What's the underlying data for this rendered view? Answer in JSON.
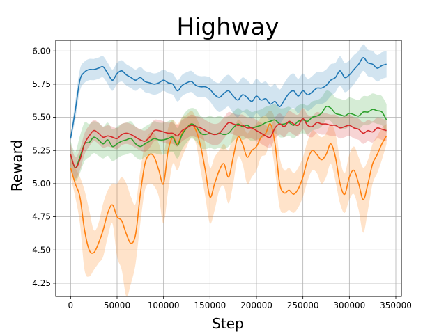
{
  "chart_data": {
    "type": "line",
    "title": "Highway",
    "xlabel": "Step",
    "ylabel": "Reward",
    "xlim": [
      -16000,
      356000
    ],
    "ylim": [
      4.15,
      6.08
    ],
    "grid": true,
    "legend": "none",
    "x_ticks": [
      0,
      50000,
      100000,
      150000,
      200000,
      250000,
      300000,
      350000
    ],
    "x_tick_labels": [
      "0",
      "50000",
      "100000",
      "150000",
      "200000",
      "250000",
      "300000",
      "350000"
    ],
    "y_ticks": [
      4.25,
      4.5,
      4.75,
      5.0,
      5.25,
      5.5,
      5.75,
      6.0
    ],
    "y_tick_labels": [
      "4.25",
      "4.50",
      "4.75",
      "5.00",
      "5.25",
      "5.50",
      "5.75",
      "6.00"
    ],
    "series": [
      {
        "color": "#ff7f0e",
        "band_opacity": 0.22,
        "x": [
          0,
          5000,
          10000,
          15000,
          20000,
          25000,
          30000,
          35000,
          40000,
          45000,
          50000,
          55000,
          60000,
          65000,
          70000,
          75000,
          80000,
          85000,
          90000,
          95000,
          100000,
          105000,
          110000,
          115000,
          120000,
          125000,
          130000,
          135000,
          140000,
          145000,
          150000,
          155000,
          160000,
          165000,
          170000,
          175000,
          180000,
          185000,
          190000,
          195000,
          200000,
          205000,
          210000,
          215000,
          220000,
          225000,
          230000,
          235000,
          240000,
          245000,
          250000,
          255000,
          260000,
          265000,
          270000,
          275000,
          280000,
          285000,
          290000,
          295000,
          300000,
          305000,
          310000,
          315000,
          320000,
          325000,
          330000,
          335000,
          340000
        ],
        "mean": [
          5.12,
          5.0,
          4.9,
          4.65,
          4.5,
          4.48,
          4.55,
          4.65,
          4.78,
          4.84,
          4.75,
          4.72,
          4.62,
          4.55,
          4.62,
          4.92,
          5.15,
          5.22,
          5.2,
          5.1,
          5.0,
          5.25,
          5.35,
          5.3,
          5.38,
          5.42,
          5.45,
          5.4,
          5.28,
          5.1,
          4.9,
          5.0,
          5.1,
          5.15,
          5.05,
          5.2,
          5.35,
          5.3,
          5.2,
          5.25,
          5.28,
          5.35,
          5.38,
          5.45,
          5.3,
          5.0,
          4.93,
          4.95,
          4.92,
          4.96,
          5.05,
          5.18,
          5.25,
          5.22,
          5.18,
          5.22,
          5.3,
          5.2,
          5.0,
          4.92,
          5.05,
          5.1,
          5.0,
          4.88,
          5.0,
          5.15,
          5.22,
          5.3,
          5.36
        ],
        "low": [
          5.05,
          4.9,
          4.7,
          4.35,
          4.3,
          4.35,
          4.4,
          4.45,
          4.6,
          4.7,
          4.45,
          4.35,
          4.15,
          4.25,
          4.4,
          4.7,
          4.95,
          5.0,
          4.98,
          4.9,
          4.7,
          4.95,
          5.15,
          5.1,
          5.2,
          5.28,
          5.35,
          5.3,
          5.1,
          4.9,
          4.7,
          4.8,
          4.95,
          4.98,
          4.85,
          5.0,
          5.2,
          5.15,
          5.0,
          5.05,
          5.1,
          5.2,
          5.22,
          5.3,
          5.1,
          4.82,
          4.78,
          4.8,
          4.78,
          4.82,
          4.9,
          5.02,
          5.1,
          5.08,
          5.0,
          5.05,
          5.15,
          5.02,
          4.85,
          4.78,
          4.88,
          4.92,
          4.8,
          4.63,
          4.8,
          5.0,
          5.08,
          5.18,
          5.3
        ],
        "high": [
          5.2,
          5.12,
          5.05,
          4.95,
          4.8,
          4.65,
          4.7,
          4.85,
          4.95,
          5.0,
          5.0,
          5.05,
          5.0,
          4.9,
          4.85,
          5.1,
          5.3,
          5.38,
          5.38,
          5.3,
          5.22,
          5.42,
          5.48,
          5.45,
          5.5,
          5.52,
          5.55,
          5.5,
          5.42,
          5.3,
          5.12,
          5.2,
          5.25,
          5.3,
          5.25,
          5.38,
          5.48,
          5.45,
          5.38,
          5.42,
          5.45,
          5.5,
          5.52,
          5.55,
          5.48,
          5.2,
          5.1,
          5.12,
          5.08,
          5.12,
          5.2,
          5.32,
          5.4,
          5.38,
          5.35,
          5.38,
          5.45,
          5.38,
          5.18,
          5.08,
          5.22,
          5.28,
          5.2,
          5.12,
          5.18,
          5.3,
          5.36,
          5.42,
          5.45
        ]
      },
      {
        "color": "#2ca02c",
        "band_opacity": 0.2,
        "x": [
          0,
          5000,
          10000,
          15000,
          20000,
          25000,
          30000,
          35000,
          40000,
          45000,
          50000,
          55000,
          60000,
          65000,
          70000,
          75000,
          80000,
          85000,
          90000,
          95000,
          100000,
          105000,
          110000,
          115000,
          120000,
          125000,
          130000,
          135000,
          140000,
          145000,
          150000,
          155000,
          160000,
          165000,
          170000,
          175000,
          180000,
          185000,
          190000,
          195000,
          200000,
          205000,
          210000,
          215000,
          220000,
          225000,
          230000,
          235000,
          240000,
          245000,
          250000,
          255000,
          260000,
          265000,
          270000,
          275000,
          280000,
          285000,
          290000,
          295000,
          300000,
          305000,
          310000,
          315000,
          320000,
          325000,
          330000,
          335000,
          340000
        ],
        "mean": [
          5.22,
          5.12,
          5.2,
          5.3,
          5.31,
          5.35,
          5.33,
          5.3,
          5.33,
          5.28,
          5.3,
          5.32,
          5.33,
          5.34,
          5.3,
          5.28,
          5.3,
          5.32,
          5.34,
          5.33,
          5.33,
          5.34,
          5.35,
          5.29,
          5.37,
          5.42,
          5.45,
          5.43,
          5.38,
          5.37,
          5.38,
          5.37,
          5.38,
          5.37,
          5.38,
          5.42,
          5.45,
          5.43,
          5.44,
          5.42,
          5.43,
          5.44,
          5.46,
          5.47,
          5.48,
          5.45,
          5.45,
          5.46,
          5.44,
          5.47,
          5.48,
          5.47,
          5.5,
          5.51,
          5.53,
          5.58,
          5.57,
          5.53,
          5.52,
          5.51,
          5.53,
          5.52,
          5.51,
          5.54,
          5.54,
          5.56,
          5.55,
          5.54,
          5.48
        ],
        "low": [
          5.12,
          5.02,
          5.08,
          5.17,
          5.2,
          5.23,
          5.21,
          5.19,
          5.21,
          5.17,
          5.19,
          5.21,
          5.22,
          5.23,
          5.2,
          5.18,
          5.2,
          5.22,
          5.23,
          5.22,
          5.22,
          5.23,
          5.24,
          5.19,
          5.26,
          5.31,
          5.34,
          5.32,
          5.27,
          5.26,
          5.27,
          5.26,
          5.27,
          5.26,
          5.28,
          5.32,
          5.35,
          5.33,
          5.34,
          5.32,
          5.33,
          5.34,
          5.36,
          5.37,
          5.38,
          5.35,
          5.35,
          5.36,
          5.34,
          5.37,
          5.38,
          5.37,
          5.4,
          5.41,
          5.43,
          5.48,
          5.47,
          5.43,
          5.42,
          5.41,
          5.43,
          5.42,
          5.41,
          5.44,
          5.44,
          5.46,
          5.45,
          5.44,
          5.38
        ],
        "high": [
          5.32,
          5.24,
          5.36,
          5.46,
          5.45,
          5.47,
          5.46,
          5.43,
          5.46,
          5.41,
          5.43,
          5.45,
          5.46,
          5.47,
          5.43,
          5.41,
          5.43,
          5.45,
          5.47,
          5.46,
          5.46,
          5.47,
          5.48,
          5.42,
          5.5,
          5.55,
          5.57,
          5.56,
          5.51,
          5.5,
          5.51,
          5.5,
          5.51,
          5.5,
          5.51,
          5.54,
          5.57,
          5.55,
          5.56,
          5.54,
          5.55,
          5.56,
          5.58,
          5.59,
          5.6,
          5.57,
          5.57,
          5.58,
          5.56,
          5.59,
          5.6,
          5.59,
          5.62,
          5.63,
          5.65,
          5.7,
          5.69,
          5.65,
          5.64,
          5.63,
          5.65,
          5.64,
          5.63,
          5.66,
          5.66,
          5.68,
          5.67,
          5.66,
          5.6
        ]
      },
      {
        "color": "#d62728",
        "band_opacity": 0.2,
        "x": [
          0,
          5000,
          10000,
          15000,
          20000,
          25000,
          30000,
          35000,
          40000,
          45000,
          50000,
          55000,
          60000,
          65000,
          70000,
          75000,
          80000,
          85000,
          90000,
          95000,
          100000,
          105000,
          110000,
          115000,
          120000,
          125000,
          130000,
          135000,
          140000,
          145000,
          150000,
          155000,
          160000,
          165000,
          170000,
          175000,
          180000,
          185000,
          190000,
          195000,
          200000,
          205000,
          210000,
          215000,
          220000,
          225000,
          230000,
          235000,
          240000,
          245000,
          250000,
          255000,
          260000,
          265000,
          270000,
          275000,
          280000,
          285000,
          290000,
          295000,
          300000,
          305000,
          310000,
          315000,
          320000,
          325000,
          330000,
          335000,
          340000
        ],
        "mean": [
          5.22,
          5.12,
          5.18,
          5.3,
          5.36,
          5.4,
          5.38,
          5.35,
          5.36,
          5.35,
          5.34,
          5.37,
          5.38,
          5.37,
          5.35,
          5.33,
          5.32,
          5.35,
          5.4,
          5.4,
          5.39,
          5.38,
          5.38,
          5.36,
          5.4,
          5.42,
          5.44,
          5.43,
          5.42,
          5.4,
          5.38,
          5.37,
          5.38,
          5.42,
          5.46,
          5.45,
          5.44,
          5.44,
          5.42,
          5.42,
          5.4,
          5.38,
          5.36,
          5.35,
          5.42,
          5.45,
          5.43,
          5.47,
          5.45,
          5.44,
          5.49,
          5.44,
          5.43,
          5.46,
          5.45,
          5.45,
          5.44,
          5.44,
          5.42,
          5.43,
          5.44,
          5.42,
          5.41,
          5.38,
          5.4,
          5.39,
          5.42,
          5.41,
          5.4
        ],
        "low": [
          5.14,
          5.04,
          5.1,
          5.22,
          5.28,
          5.32,
          5.3,
          5.27,
          5.28,
          5.27,
          5.26,
          5.29,
          5.3,
          5.29,
          5.27,
          5.25,
          5.24,
          5.27,
          5.32,
          5.32,
          5.31,
          5.3,
          5.3,
          5.28,
          5.32,
          5.34,
          5.36,
          5.35,
          5.34,
          5.32,
          5.3,
          5.29,
          5.3,
          5.34,
          5.38,
          5.37,
          5.36,
          5.36,
          5.34,
          5.34,
          5.32,
          5.3,
          5.28,
          5.27,
          5.34,
          5.37,
          5.35,
          5.39,
          5.37,
          5.36,
          5.41,
          5.36,
          5.35,
          5.38,
          5.37,
          5.37,
          5.36,
          5.36,
          5.34,
          5.35,
          5.36,
          5.34,
          5.33,
          5.3,
          5.32,
          5.31,
          5.34,
          5.33,
          5.32
        ],
        "high": [
          5.3,
          5.2,
          5.26,
          5.38,
          5.44,
          5.48,
          5.46,
          5.43,
          5.44,
          5.43,
          5.42,
          5.45,
          5.46,
          5.45,
          5.43,
          5.41,
          5.4,
          5.43,
          5.48,
          5.48,
          5.47,
          5.46,
          5.46,
          5.44,
          5.48,
          5.5,
          5.52,
          5.51,
          5.5,
          5.48,
          5.46,
          5.45,
          5.46,
          5.5,
          5.54,
          5.53,
          5.52,
          5.52,
          5.5,
          5.5,
          5.48,
          5.46,
          5.44,
          5.43,
          5.5,
          5.53,
          5.51,
          5.55,
          5.53,
          5.52,
          5.57,
          5.52,
          5.51,
          5.54,
          5.53,
          5.53,
          5.52,
          5.52,
          5.5,
          5.51,
          5.52,
          5.5,
          5.49,
          5.46,
          5.48,
          5.47,
          5.5,
          5.49,
          5.48
        ]
      },
      {
        "color": "#1f77b4",
        "band_opacity": 0.2,
        "x": [
          0,
          5000,
          10000,
          15000,
          20000,
          25000,
          30000,
          35000,
          40000,
          45000,
          50000,
          55000,
          60000,
          65000,
          70000,
          75000,
          80000,
          85000,
          90000,
          95000,
          100000,
          105000,
          110000,
          115000,
          120000,
          125000,
          130000,
          135000,
          140000,
          145000,
          150000,
          155000,
          160000,
          165000,
          170000,
          175000,
          180000,
          185000,
          190000,
          195000,
          200000,
          205000,
          210000,
          215000,
          220000,
          225000,
          230000,
          235000,
          240000,
          245000,
          250000,
          255000,
          260000,
          265000,
          270000,
          275000,
          280000,
          285000,
          290000,
          295000,
          300000,
          305000,
          310000,
          315000,
          320000,
          325000,
          330000,
          335000,
          340000
        ],
        "mean": [
          5.34,
          5.55,
          5.78,
          5.84,
          5.86,
          5.86,
          5.87,
          5.88,
          5.83,
          5.78,
          5.83,
          5.85,
          5.82,
          5.8,
          5.78,
          5.8,
          5.77,
          5.76,
          5.75,
          5.76,
          5.78,
          5.76,
          5.75,
          5.7,
          5.74,
          5.76,
          5.77,
          5.74,
          5.73,
          5.73,
          5.71,
          5.67,
          5.65,
          5.68,
          5.7,
          5.66,
          5.63,
          5.67,
          5.65,
          5.62,
          5.66,
          5.63,
          5.64,
          5.6,
          5.62,
          5.58,
          5.63,
          5.68,
          5.7,
          5.66,
          5.7,
          5.67,
          5.69,
          5.72,
          5.72,
          5.74,
          5.78,
          5.8,
          5.85,
          5.8,
          5.82,
          5.86,
          5.9,
          5.95,
          5.91,
          5.9,
          5.87,
          5.89,
          5.9
        ],
        "low": [
          5.32,
          5.48,
          5.7,
          5.76,
          5.78,
          5.78,
          5.79,
          5.8,
          5.75,
          5.7,
          5.75,
          5.77,
          5.74,
          5.72,
          5.7,
          5.72,
          5.69,
          5.68,
          5.67,
          5.68,
          5.7,
          5.68,
          5.67,
          5.62,
          5.66,
          5.68,
          5.69,
          5.66,
          5.65,
          5.65,
          5.62,
          5.57,
          5.54,
          5.56,
          5.58,
          5.53,
          5.5,
          5.54,
          5.52,
          5.49,
          5.53,
          5.5,
          5.51,
          5.47,
          5.49,
          5.45,
          5.5,
          5.55,
          5.57,
          5.53,
          5.57,
          5.55,
          5.57,
          5.6,
          5.6,
          5.62,
          5.66,
          5.69,
          5.74,
          5.69,
          5.71,
          5.75,
          5.8,
          5.85,
          5.81,
          5.8,
          5.77,
          5.79,
          5.8
        ],
        "high": [
          5.36,
          5.62,
          5.86,
          5.92,
          5.94,
          5.94,
          5.95,
          5.96,
          5.91,
          5.86,
          5.91,
          5.93,
          5.9,
          5.88,
          5.86,
          5.88,
          5.85,
          5.84,
          5.83,
          5.84,
          5.86,
          5.84,
          5.83,
          5.78,
          5.82,
          5.84,
          5.85,
          5.82,
          5.81,
          5.81,
          5.8,
          5.77,
          5.76,
          5.8,
          5.82,
          5.79,
          5.76,
          5.8,
          5.78,
          5.75,
          5.79,
          5.76,
          5.77,
          5.73,
          5.75,
          5.71,
          5.76,
          5.81,
          5.83,
          5.79,
          5.83,
          5.79,
          5.81,
          5.84,
          5.84,
          5.86,
          5.9,
          5.91,
          5.96,
          5.91,
          5.93,
          5.97,
          6.0,
          6.05,
          6.01,
          6.0,
          5.97,
          5.99,
          6.0
        ]
      }
    ]
  }
}
